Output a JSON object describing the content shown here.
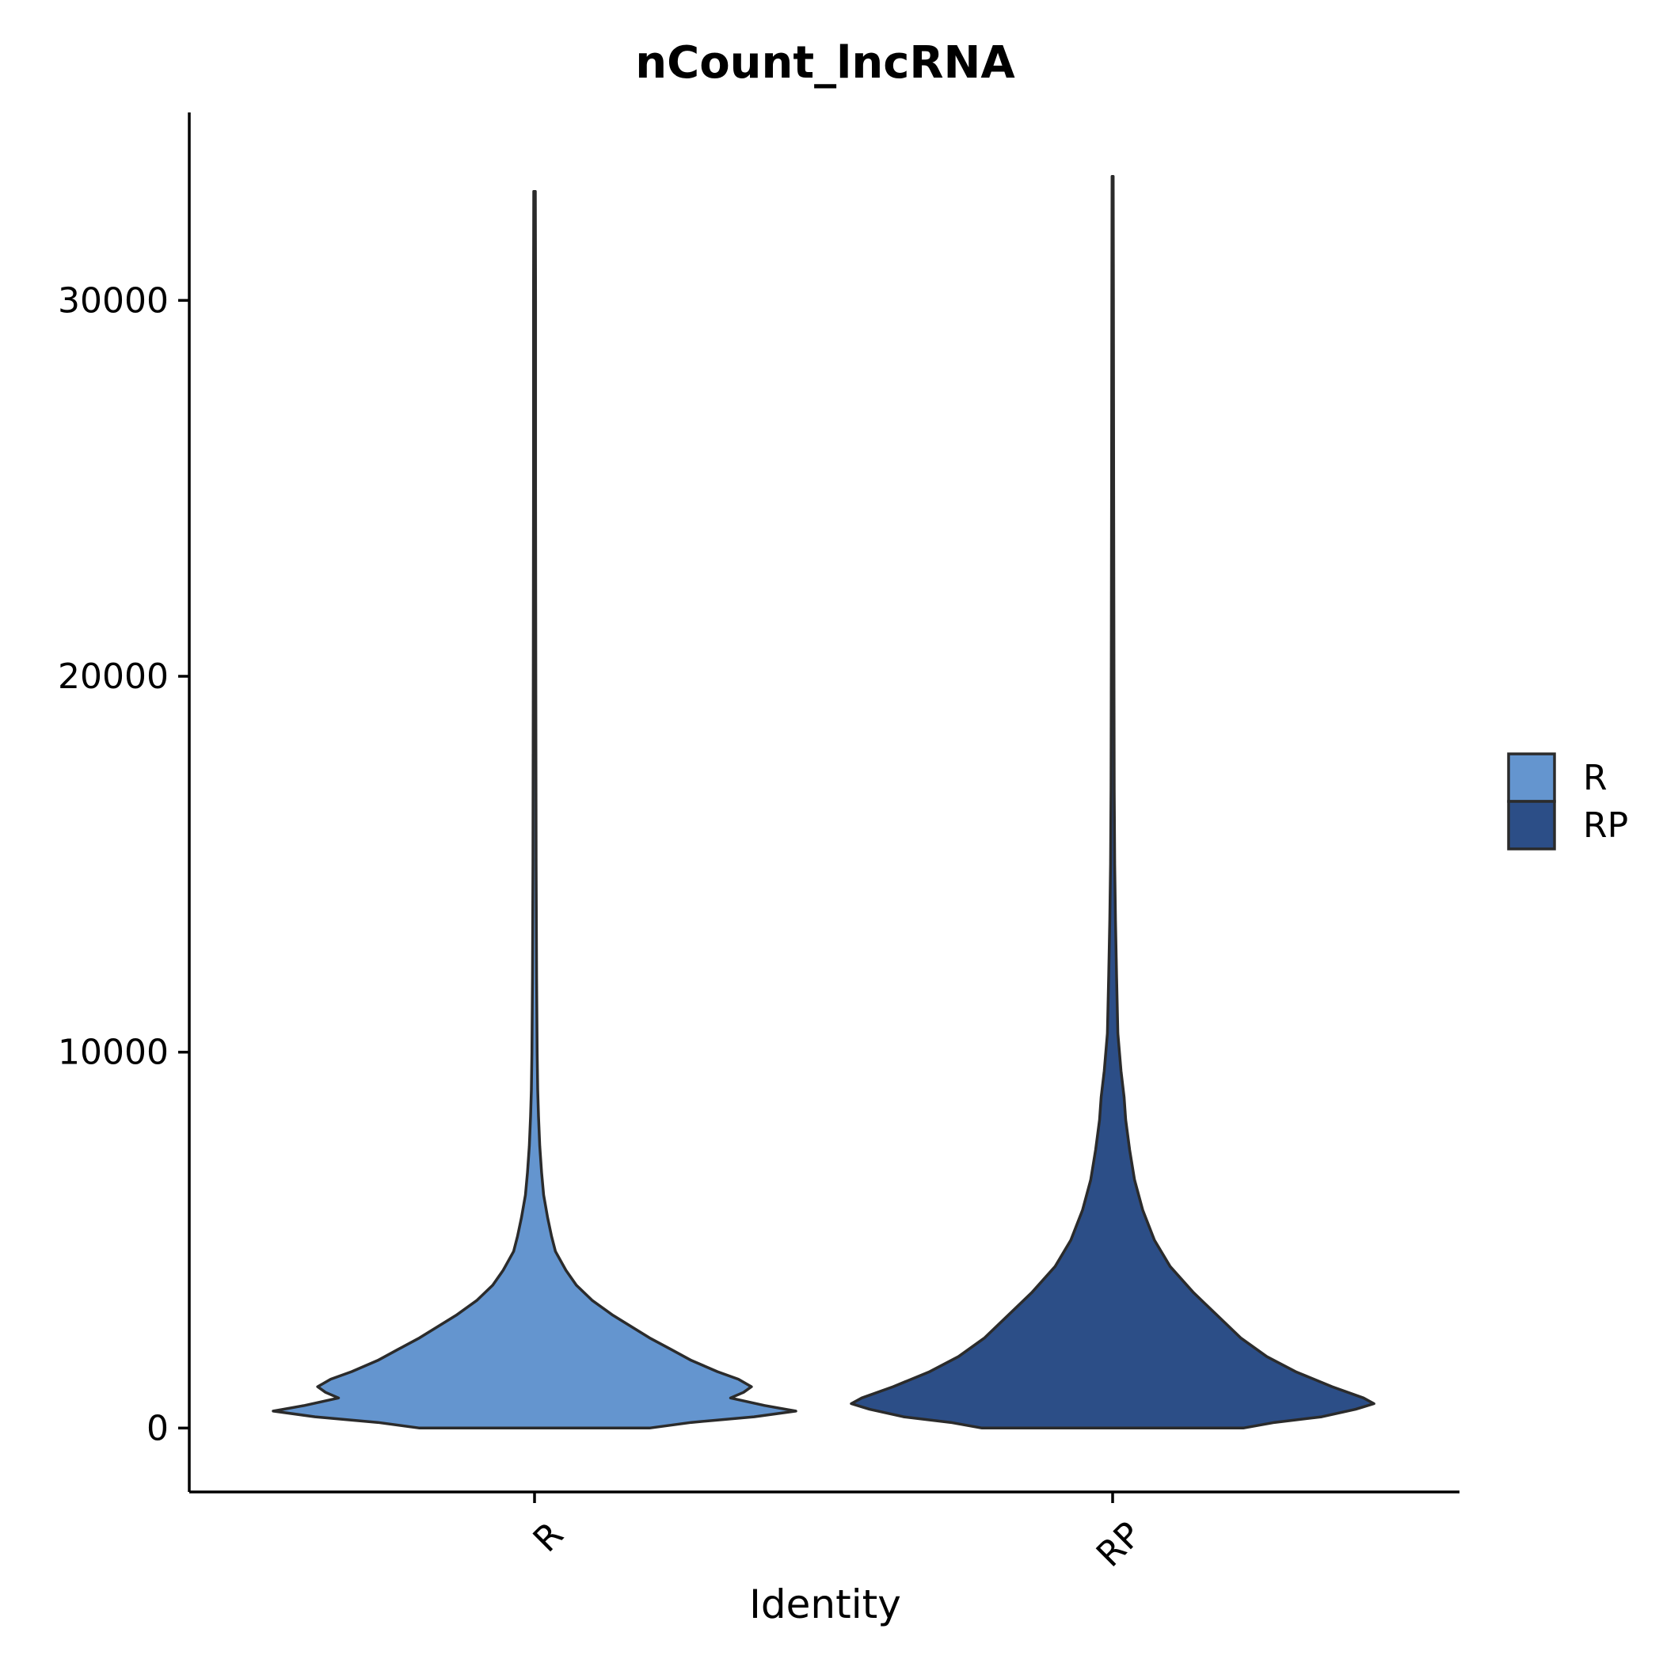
{
  "chart_data": {
    "type": "violin",
    "title": "nCount_lncRNA",
    "xlabel": "Identity",
    "ylabel": "",
    "categories": [
      "R",
      "RP"
    ],
    "ylim": [
      -1700,
      35000
    ],
    "yticks": [
      0,
      10000,
      20000,
      30000
    ],
    "ytick_labels": [
      "0",
      "10000",
      "20000",
      "30000"
    ],
    "grid": false,
    "legend": {
      "position": "right",
      "entries": [
        "R",
        "RP"
      ]
    },
    "colors": {
      "R": "#6495CF",
      "RP": "#2C4E87"
    },
    "series": [
      {
        "name": "R",
        "y_max": 32900,
        "density_profile": [
          [
            0,
            0.44
          ],
          [
            150,
            0.6
          ],
          [
            300,
            0.84
          ],
          [
            450,
            1.0
          ],
          [
            600,
            0.88
          ],
          [
            800,
            0.75
          ],
          [
            950,
            0.8
          ],
          [
            1100,
            0.83
          ],
          [
            1300,
            0.78
          ],
          [
            1500,
            0.7
          ],
          [
            1800,
            0.6
          ],
          [
            2100,
            0.52
          ],
          [
            2400,
            0.44
          ],
          [
            2700,
            0.37
          ],
          [
            3000,
            0.3
          ],
          [
            3400,
            0.22
          ],
          [
            3800,
            0.16
          ],
          [
            4200,
            0.12
          ],
          [
            4700,
            0.08
          ],
          [
            5100,
            0.065
          ],
          [
            5600,
            0.05
          ],
          [
            6200,
            0.035
          ],
          [
            6800,
            0.027
          ],
          [
            7500,
            0.02
          ],
          [
            8300,
            0.015
          ],
          [
            9000,
            0.012
          ],
          [
            10000,
            0.01
          ],
          [
            12000,
            0.008
          ],
          [
            15000,
            0.006
          ],
          [
            20000,
            0.005
          ],
          [
            25000,
            0.004
          ],
          [
            30000,
            0.004
          ],
          [
            32900,
            0.003
          ]
        ]
      },
      {
        "name": "RP",
        "y_max": 33300,
        "density_profile": [
          [
            0,
            0.5
          ],
          [
            150,
            0.62
          ],
          [
            300,
            0.8
          ],
          [
            500,
            0.93
          ],
          [
            650,
            1.0
          ],
          [
            800,
            0.96
          ],
          [
            1100,
            0.84
          ],
          [
            1500,
            0.7
          ],
          [
            1900,
            0.59
          ],
          [
            2400,
            0.49
          ],
          [
            3000,
            0.4
          ],
          [
            3600,
            0.31
          ],
          [
            4300,
            0.22
          ],
          [
            5000,
            0.16
          ],
          [
            5800,
            0.115
          ],
          [
            6600,
            0.084
          ],
          [
            7400,
            0.065
          ],
          [
            8200,
            0.05
          ],
          [
            8800,
            0.044
          ],
          [
            9500,
            0.032
          ],
          [
            10500,
            0.02
          ],
          [
            12000,
            0.015
          ],
          [
            13500,
            0.011
          ],
          [
            15000,
            0.008
          ],
          [
            17000,
            0.006
          ],
          [
            20000,
            0.005
          ],
          [
            25000,
            0.004
          ],
          [
            30000,
            0.003
          ],
          [
            33300,
            0.002
          ]
        ]
      }
    ]
  }
}
